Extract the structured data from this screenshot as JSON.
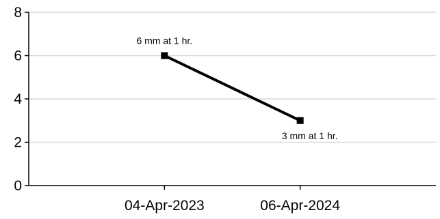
{
  "chart_data": {
    "type": "line",
    "title": "",
    "xlabel": "",
    "ylabel": "",
    "categories": [
      "04-Apr-2023",
      "06-Apr-2024"
    ],
    "series": [
      {
        "values": [
          6,
          3
        ],
        "labels": [
          "6 mm at 1 hr.",
          "3 mm at 1 hr."
        ],
        "color": "#000000"
      }
    ],
    "ylim": [
      0,
      8
    ],
    "yticks": [
      "0",
      "2",
      "4",
      "6",
      "8"
    ],
    "grid": true,
    "legend": "none"
  }
}
